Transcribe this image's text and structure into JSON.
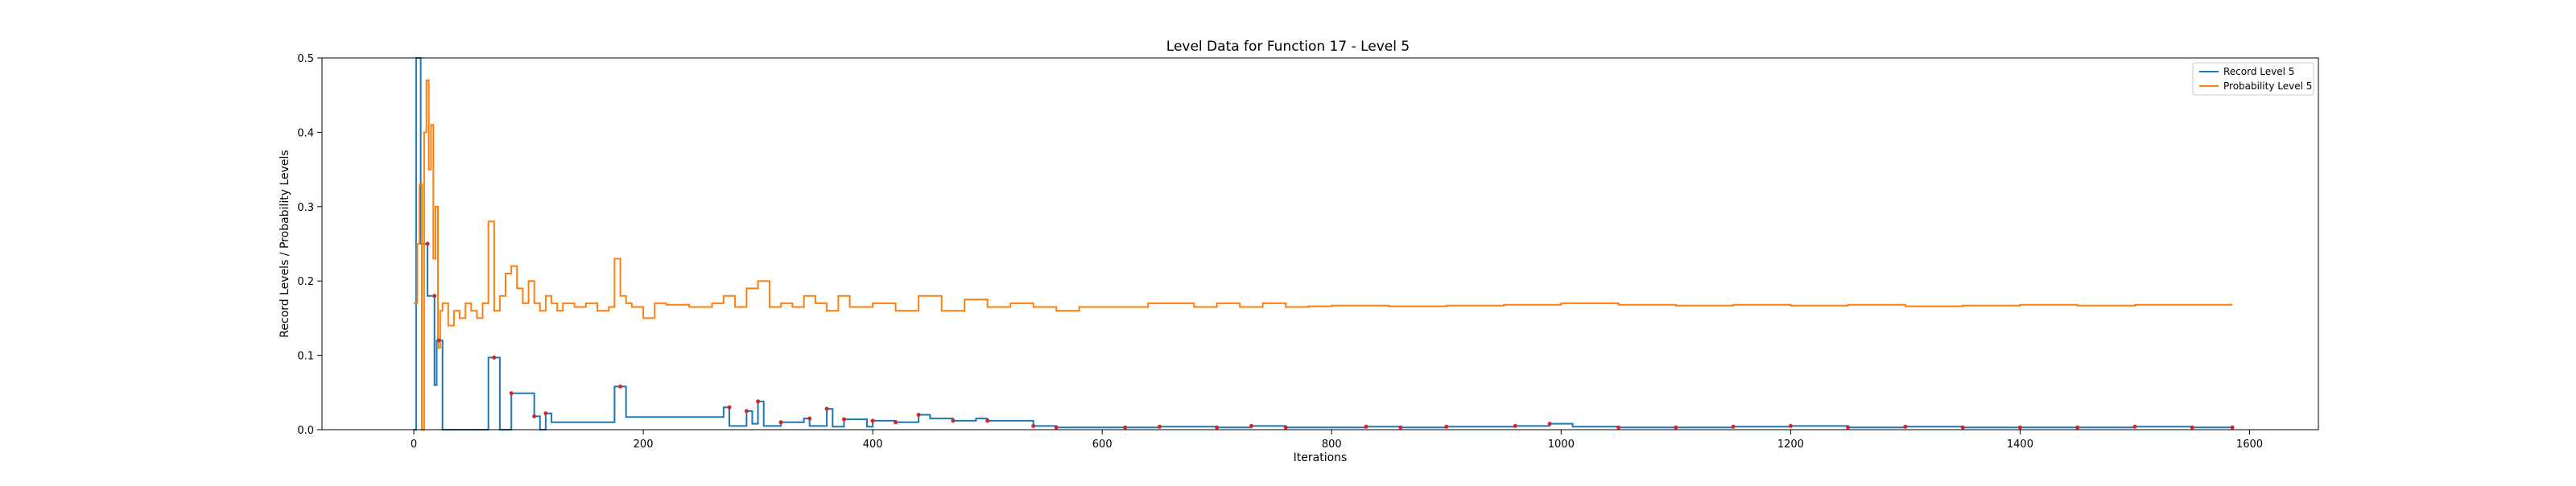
{
  "chart_data": {
    "type": "line",
    "title": "Level Data for Function 17 - Level 5",
    "xlabel": "Iterations",
    "ylabel": "Record Levels / Probability Levels",
    "xlim": [
      -80,
      1660
    ],
    "ylim": [
      0,
      0.5
    ],
    "xticks": [
      0,
      200,
      400,
      600,
      800,
      1000,
      1200,
      1400,
      1600
    ],
    "yticks": [
      0.0,
      0.1,
      0.2,
      0.3,
      0.4,
      0.5
    ],
    "xtick_labels": [
      "0",
      "200",
      "400",
      "600",
      "800",
      "1000",
      "1200",
      "1400",
      "1600"
    ],
    "ytick_labels": [
      "0.0",
      "0.1",
      "0.2",
      "0.3",
      "0.4",
      "0.5"
    ],
    "grid": false,
    "legend_position": "top-right",
    "series": [
      {
        "name": "Record Level 5",
        "color": "#1f77b4",
        "style": "step",
        "x": [
          0,
          2,
          4,
          6,
          8,
          12,
          15,
          18,
          20,
          22,
          25,
          28,
          30,
          35,
          40,
          65,
          70,
          75,
          80,
          85,
          100,
          105,
          110,
          115,
          120,
          175,
          180,
          185,
          270,
          275,
          290,
          295,
          300,
          305,
          320,
          340,
          345,
          360,
          365,
          375,
          395,
          400,
          420,
          440,
          450,
          470,
          490,
          500,
          540,
          560,
          620,
          650,
          700,
          730,
          760,
          800,
          830,
          860,
          900,
          960,
          990,
          1010,
          1050,
          1100,
          1150,
          1200,
          1250,
          1300,
          1350,
          1400,
          1450,
          1500,
          1550,
          1585
        ],
        "y": [
          0.0,
          0.5,
          0.5,
          0.25,
          0.25,
          0.18,
          0.18,
          0.06,
          0.12,
          0.12,
          0.0,
          0.0,
          0.0,
          0.0,
          0.0,
          0.097,
          0.097,
          0.0,
          0.0,
          0.049,
          0.049,
          0.018,
          0.0,
          0.022,
          0.01,
          0.058,
          0.058,
          0.017,
          0.03,
          0.005,
          0.025,
          0.008,
          0.038,
          0.005,
          0.01,
          0.015,
          0.005,
          0.028,
          0.004,
          0.014,
          0.004,
          0.012,
          0.01,
          0.02,
          0.015,
          0.012,
          0.015,
          0.012,
          0.005,
          0.003,
          0.003,
          0.004,
          0.003,
          0.005,
          0.003,
          0.003,
          0.004,
          0.003,
          0.004,
          0.005,
          0.008,
          0.004,
          0.003,
          0.003,
          0.004,
          0.005,
          0.003,
          0.004,
          0.003,
          0.003,
          0.003,
          0.004,
          0.003,
          0.003
        ]
      },
      {
        "name": "Probability Level 5",
        "color": "#ff7f0e",
        "style": "step",
        "x": [
          0,
          3,
          5,
          7,
          9,
          11,
          13,
          15,
          17,
          19,
          21,
          23,
          25,
          27,
          30,
          35,
          40,
          45,
          50,
          55,
          60,
          65,
          70,
          75,
          80,
          85,
          90,
          95,
          100,
          105,
          110,
          115,
          120,
          125,
          130,
          140,
          150,
          160,
          170,
          175,
          180,
          185,
          190,
          200,
          210,
          220,
          240,
          260,
          270,
          280,
          290,
          300,
          310,
          320,
          330,
          340,
          350,
          360,
          370,
          380,
          400,
          420,
          440,
          460,
          480,
          500,
          520,
          540,
          560,
          580,
          600,
          620,
          640,
          660,
          680,
          700,
          720,
          740,
          760,
          780,
          800,
          850,
          900,
          950,
          1000,
          1050,
          1100,
          1150,
          1200,
          1250,
          1300,
          1350,
          1400,
          1450,
          1500,
          1550,
          1585
        ],
        "y": [
          0.17,
          0.25,
          0.33,
          0.0,
          0.4,
          0.47,
          0.35,
          0.41,
          0.23,
          0.3,
          0.11,
          0.16,
          0.17,
          0.17,
          0.14,
          0.16,
          0.15,
          0.17,
          0.16,
          0.15,
          0.17,
          0.28,
          0.16,
          0.18,
          0.21,
          0.22,
          0.19,
          0.17,
          0.2,
          0.17,
          0.16,
          0.18,
          0.17,
          0.16,
          0.17,
          0.165,
          0.17,
          0.16,
          0.165,
          0.23,
          0.18,
          0.17,
          0.165,
          0.15,
          0.17,
          0.168,
          0.165,
          0.17,
          0.18,
          0.165,
          0.19,
          0.2,
          0.165,
          0.17,
          0.165,
          0.18,
          0.17,
          0.16,
          0.18,
          0.165,
          0.17,
          0.16,
          0.18,
          0.16,
          0.175,
          0.165,
          0.17,
          0.165,
          0.16,
          0.165,
          0.165,
          0.165,
          0.17,
          0.17,
          0.165,
          0.17,
          0.165,
          0.17,
          0.165,
          0.166,
          0.167,
          0.166,
          0.167,
          0.168,
          0.17,
          0.168,
          0.167,
          0.168,
          0.167,
          0.168,
          0.166,
          0.167,
          0.168,
          0.167,
          0.168,
          0.168,
          0.168
        ]
      }
    ],
    "red_markers": {
      "color": "#d62728",
      "x": [
        12,
        18,
        22,
        70,
        85,
        105,
        115,
        180,
        275,
        290,
        300,
        320,
        345,
        360,
        375,
        400,
        420,
        440,
        470,
        500,
        540,
        560,
        620,
        650,
        700,
        730,
        760,
        830,
        860,
        900,
        960,
        990,
        1050,
        1100,
        1150,
        1200,
        1250,
        1300,
        1350,
        1400,
        1450,
        1500,
        1550,
        1585
      ],
      "y": [
        0.25,
        0.18,
        0.12,
        0.097,
        0.049,
        0.018,
        0.022,
        0.058,
        0.03,
        0.025,
        0.038,
        0.01,
        0.015,
        0.028,
        0.014,
        0.012,
        0.01,
        0.02,
        0.012,
        0.012,
        0.005,
        0.003,
        0.003,
        0.004,
        0.003,
        0.005,
        0.003,
        0.004,
        0.003,
        0.004,
        0.005,
        0.008,
        0.003,
        0.003,
        0.004,
        0.005,
        0.003,
        0.004,
        0.003,
        0.003,
        0.003,
        0.004,
        0.003,
        0.003
      ]
    }
  }
}
